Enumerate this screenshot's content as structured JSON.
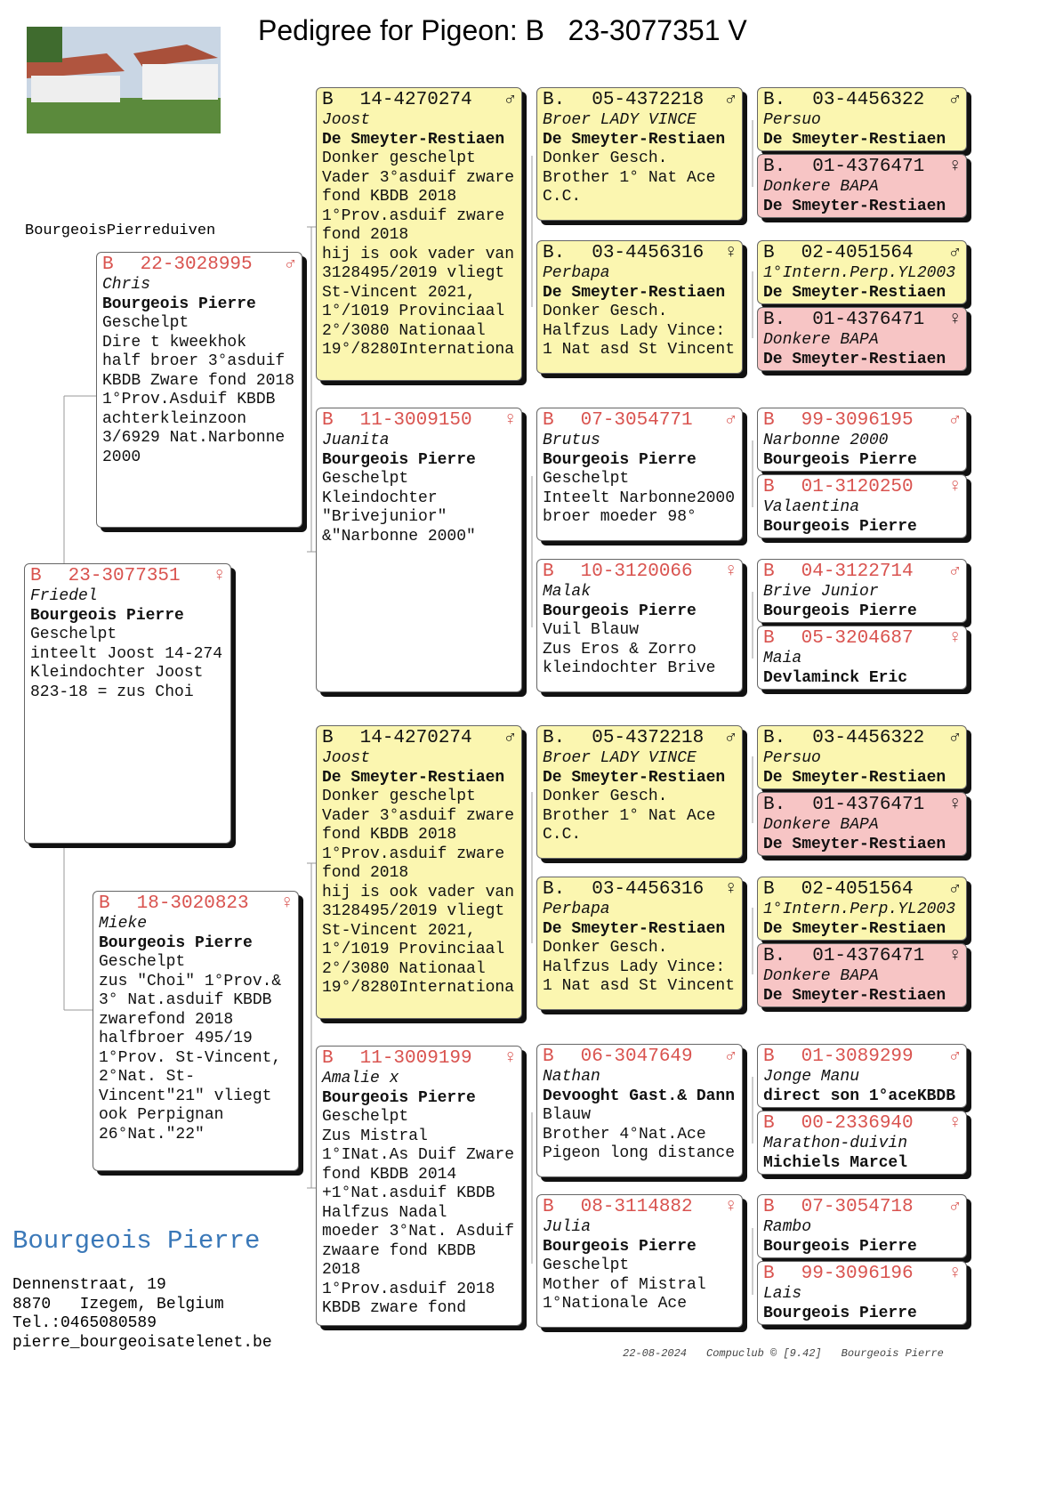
{
  "header": {
    "title": "Pedigree for Pigeon: B   23-3077351 V",
    "loft": "BourgeoisPierreduiven"
  },
  "cards": [
    {
      "country": "B",
      "ring": "23-3077351",
      "sex": "♀",
      "name": "Friedel",
      "owner": "Bourgeois Pierre",
      "fill": "#ffffff",
      "lines": [
        "Geschelpt",
        "inteelt Joost 14-274",
        "Kleindochter Joost",
        "823-18 = zus Choi"
      ]
    },
    {
      "country": "B",
      "ring": "22-3028995",
      "sex": "♂",
      "name": "Chris",
      "owner": "Bourgeois Pierre",
      "fill": "#ffffff",
      "lines": [
        "Geschelpt",
        "Dire t kweekhok",
        "half broer 3°asduif",
        "KBDB Zware fond 2018",
        "1°Prov.Asduif KBDB",
        "achterkleinzoon",
        "3/6929 Nat.Narbonne",
        "2000"
      ]
    },
    {
      "country": "B",
      "ring": "18-3020823",
      "sex": "♀",
      "name": "Mieke",
      "owner": "Bourgeois Pierre",
      "fill": "#ffffff",
      "lines": [
        "Geschelpt",
        "zus \"Choi\" 1°Prov.&",
        "3° Nat.asduif KBDB",
        "zwarefond 2018",
        "halfbroer 495/19",
        "1°Prov. St-Vincent,",
        "2°Nat. St-",
        "Vincent\"21\" vliegt",
        "ook Perpignan",
        "26°Nat.\"22\""
      ]
    },
    {
      "country": "B",
      "ring": "14-4270274",
      "sex": "♂",
      "name": "Joost",
      "owner": "De Smeyter-Restiaen",
      "fill": "#fbf6b0",
      "lines": [
        "Donker geschelpt",
        "Vader 3°asduif zware",
        "fond KBDB 2018",
        "1°Prov.asduif zware",
        "fond 2018",
        "hij is ook vader van",
        "3128495/2019 vliegt",
        "St-Vincent 2021,",
        "1°/1019 Provinciaal",
        "2°/3080 Nationaal",
        "19°/8280Internationa"
      ]
    },
    {
      "country": "B",
      "ring": "11-3009150",
      "sex": "♀",
      "name": "Juanita",
      "owner": "Bourgeois Pierre",
      "fill": "#ffffff",
      "lines": [
        "Geschelpt",
        "Kleindochter",
        "\"Brivejunior\"",
        "&\"Narbonne 2000\""
      ]
    },
    {
      "country": "B",
      "ring": "14-4270274",
      "sex": "♂",
      "name": "Joost",
      "owner": "De Smeyter-Restiaen",
      "fill": "#fbf6b0",
      "lines": [
        "Donker geschelpt",
        "Vader 3°asduif zware",
        "fond KBDB 2018",
        "1°Prov.asduif zware",
        "fond 2018",
        "hij is ook vader van",
        "3128495/2019 vliegt",
        "St-Vincent 2021,",
        "1°/1019 Provinciaal",
        "2°/3080 Nationaal",
        "19°/8280Internationa"
      ]
    },
    {
      "country": "B",
      "ring": "11-3009199",
      "sex": "♀",
      "name": "Amalie x",
      "owner": "Bourgeois Pierre",
      "fill": "#ffffff",
      "lines": [
        "Geschelpt",
        "Zus Mistral",
        "1°INat.As Duif Zware",
        "fond KBDB 2014",
        "+1°Nat.asduif KBDB",
        "Halfzus Nadal",
        "moeder 3°Nat. Asduif",
        "zwaare fond KBDB 2018",
        "1°Prov.asduif 2018",
        "KBDB zware fond"
      ]
    },
    {
      "country": "B.",
      "ring": "05-4372218",
      "sex": "♂",
      "name": "Broer LADY VINCE",
      "owner": "De Smeyter-Restiaen",
      "fill": "#fbf6b0",
      "lines": [
        "Donker Gesch.",
        "Brother 1° Nat Ace",
        "C.C."
      ]
    },
    {
      "country": "B.",
      "ring": "03-4456316",
      "sex": "♀",
      "name": "Perbapa",
      "owner": "De Smeyter-Restiaen",
      "fill": "#fbf6b0",
      "lines": [
        "Donker Gesch.",
        "Halfzus Lady Vince:",
        "1 Nat asd St Vincent"
      ]
    },
    {
      "country": "B",
      "ring": "07-3054771",
      "sex": "♂",
      "name": "Brutus",
      "owner": "Bourgeois Pierre",
      "fill": "#ffffff",
      "lines": [
        "Geschelpt",
        "Inteelt Narbonne2000",
        "broer moeder 98°"
      ]
    },
    {
      "country": "B",
      "ring": "10-3120066",
      "sex": "♀",
      "name": "Malak",
      "owner": "Bourgeois Pierre",
      "fill": "#ffffff",
      "lines": [
        "Vuil Blauw",
        "Zus Eros & Zorro",
        "kleindochter Brive"
      ]
    },
    {
      "country": "B.",
      "ring": "05-4372218",
      "sex": "♂",
      "name": "Broer LADY VINCE",
      "owner": "De Smeyter-Restiaen",
      "fill": "#fbf6b0",
      "lines": [
        "Donker Gesch.",
        "Brother 1° Nat Ace",
        "C.C."
      ]
    },
    {
      "country": "B.",
      "ring": "03-4456316",
      "sex": "♀",
      "name": "Perbapa",
      "owner": "De Smeyter-Restiaen",
      "fill": "#fbf6b0",
      "lines": [
        "Donker Gesch.",
        "Halfzus Lady Vince:",
        "1 Nat asd St Vincent"
      ]
    },
    {
      "country": "B",
      "ring": "06-3047649",
      "sex": "♂",
      "name": "Nathan",
      "owner": "Devooght Gast.& Dann",
      "fill": "#ffffff",
      "lines": [
        "Blauw",
        "Brother 4°Nat.Ace",
        "Pigeon long distance"
      ]
    },
    {
      "country": "B",
      "ring": "08-3114882",
      "sex": "♀",
      "name": "Julia",
      "owner": "Bourgeois Pierre",
      "fill": "#ffffff",
      "lines": [
        "Geschelpt",
        "Mother of Mistral",
        "1°Nationale Ace"
      ]
    },
    {
      "country": "B.",
      "ring": "03-4456322",
      "sex": "♂",
      "name": "Persuo",
      "owner": "De Smeyter-Restiaen",
      "fill": "#fbf6b0",
      "lines": []
    },
    {
      "country": "B.",
      "ring": "01-4376471",
      "sex": "♀",
      "name": "Donkere BAPA",
      "owner": "De Smeyter-Restiaen",
      "fill": "#f7c5c5",
      "lines": []
    },
    {
      "country": "B",
      "ring": "02-4051564",
      "sex": "♂",
      "name": "1°Intern.Perp.YL2003",
      "owner": "De Smeyter-Restiaen",
      "fill": "#fbf6b0",
      "lines": []
    },
    {
      "country": "B.",
      "ring": "01-4376471",
      "sex": "♀",
      "name": "Donkere BAPA",
      "owner": "De Smeyter-Restiaen",
      "fill": "#f7c5c5",
      "lines": []
    },
    {
      "country": "B",
      "ring": "99-3096195",
      "sex": "♂",
      "name": "Narbonne 2000",
      "owner": "Bourgeois Pierre",
      "fill": "#ffffff",
      "lines": []
    },
    {
      "country": "B",
      "ring": "01-3120250",
      "sex": "♀",
      "name": "Valaentina",
      "owner": "Bourgeois Pierre",
      "fill": "#ffffff",
      "lines": []
    },
    {
      "country": "B",
      "ring": "04-3122714",
      "sex": "♂",
      "name": "Brive Junior",
      "owner": "Bourgeois Pierre",
      "fill": "#ffffff",
      "lines": []
    },
    {
      "country": "B",
      "ring": "05-3204687",
      "sex": "♀",
      "name": "Maia",
      "owner": "Devlaminck Eric",
      "fill": "#ffffff",
      "lines": []
    },
    {
      "country": "B.",
      "ring": "03-4456322",
      "sex": "♂",
      "name": "Persuo",
      "owner": "De Smeyter-Restiaen",
      "fill": "#fbf6b0",
      "lines": []
    },
    {
      "country": "B.",
      "ring": "01-4376471",
      "sex": "♀",
      "name": "Donkere BAPA",
      "owner": "De Smeyter-Restiaen",
      "fill": "#f7c5c5",
      "lines": []
    },
    {
      "country": "B",
      "ring": "02-4051564",
      "sex": "♂",
      "name": "1°Intern.Perp.YL2003",
      "owner": "De Smeyter-Restiaen",
      "fill": "#fbf6b0",
      "lines": []
    },
    {
      "country": "B.",
      "ring": "01-4376471",
      "sex": "♀",
      "name": "Donkere BAPA",
      "owner": "De Smeyter-Restiaen",
      "fill": "#f7c5c5",
      "lines": []
    },
    {
      "country": "B",
      "ring": "01-3089299",
      "sex": "♂",
      "name": "Jonge Manu",
      "owner": "direct son 1°aceKBDB",
      "fill": "#ffffff",
      "lines": []
    },
    {
      "country": "B",
      "ring": "00-2336940",
      "sex": "♀",
      "name": "Marathon-duivin",
      "owner": "Michiels Marcel",
      "fill": "#ffffff",
      "lines": []
    },
    {
      "country": "B",
      "ring": "07-3054718",
      "sex": "♂",
      "name": "Rambo",
      "owner": "Bourgeois Pierre",
      "fill": "#ffffff",
      "lines": []
    },
    {
      "country": "B",
      "ring": "99-3096196",
      "sex": "♀",
      "name": "Lais",
      "owner": "Bourgeois Pierre",
      "fill": "#ffffff",
      "lines": []
    }
  ],
  "contact": {
    "name": "Bourgeois Pierre",
    "lines": [
      "Dennenstraat, 19",
      "8870   Izegem, Belgium",
      "Tel.:0465080589",
      "pierre_bourgeoisatelenet.be"
    ]
  },
  "footer": {
    "date": "22-08-2024",
    "software": "Compuclub © [9.42]",
    "owner": "Bourgeois Pierre"
  }
}
